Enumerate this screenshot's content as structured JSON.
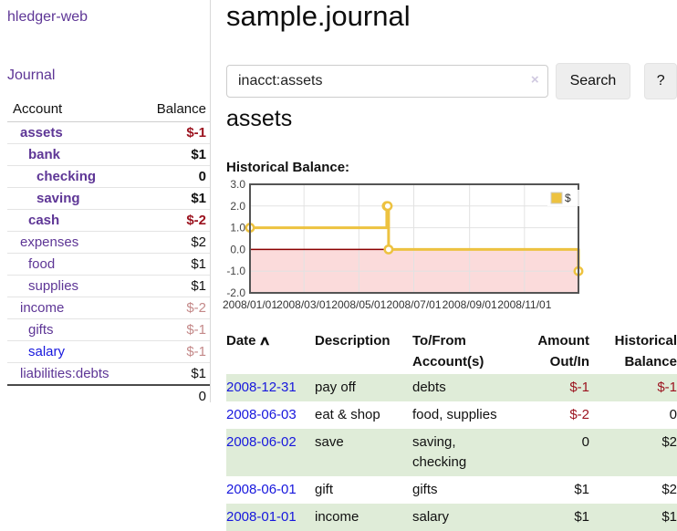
{
  "app": {
    "title": "hledger-web"
  },
  "colors": {
    "accent_purple": "#5e3696",
    "link_blue": "#1717dd",
    "negative_strong": "#9b121e",
    "negative_dim": "#c48989",
    "row_stripe_green": "#dfecd8",
    "chart_series": "#edc240",
    "chart_negative_fill": "#fbdbdb",
    "chart_zero_line": "#8b0000",
    "chart_border": "#545454",
    "chart_grid": "#e2e2e2",
    "button_bg": "#eeeeee"
  },
  "sidebar": {
    "journal_link": "Journal",
    "accounts": {
      "headers": {
        "account": "Account",
        "balance": "Balance"
      },
      "rows": [
        {
          "name": "assets",
          "depth": 0,
          "bold": true,
          "link": "purple",
          "balance": "$-1",
          "balance_class": "bal-neg-strong"
        },
        {
          "name": "bank",
          "depth": 1,
          "bold": true,
          "link": "purple",
          "balance": "$1",
          "balance_class": "bal-strong"
        },
        {
          "name": "checking",
          "depth": 2,
          "bold": true,
          "link": "purple",
          "balance": "0",
          "balance_class": "bal-strong"
        },
        {
          "name": "saving",
          "depth": 2,
          "bold": true,
          "link": "purple",
          "balance": "$1",
          "balance_class": "bal-strong"
        },
        {
          "name": "cash",
          "depth": 1,
          "bold": true,
          "link": "purple",
          "balance": "$-2",
          "balance_class": "bal-neg-strong"
        },
        {
          "name": "expenses",
          "depth": 0,
          "bold": false,
          "link": "purple",
          "balance": "$2",
          "balance_class": "bal-plain"
        },
        {
          "name": "food",
          "depth": 1,
          "bold": false,
          "link": "purple",
          "balance": "$1",
          "balance_class": "bal-plain"
        },
        {
          "name": "supplies",
          "depth": 1,
          "bold": false,
          "link": "purple",
          "balance": "$1",
          "balance_class": "bal-plain"
        },
        {
          "name": "income",
          "depth": 0,
          "bold": false,
          "link": "purple",
          "balance": "$-2",
          "balance_class": "bal-neg-dim"
        },
        {
          "name": "gifts",
          "depth": 1,
          "bold": false,
          "link": "purple",
          "balance": "$-1",
          "balance_class": "bal-neg-dim"
        },
        {
          "name": "salary",
          "depth": 1,
          "bold": false,
          "link": "blue",
          "balance": "$-1",
          "balance_class": "bal-neg-dim"
        },
        {
          "name": "liabilities:debts",
          "depth": 0,
          "bold": false,
          "link": "purple",
          "balance": "$1",
          "balance_class": "bal-plain"
        }
      ],
      "total": "0"
    }
  },
  "main": {
    "title": "sample.journal",
    "search": {
      "value": "inacct:assets",
      "clear_icon": "×",
      "button_label": "Search",
      "help_label": "?"
    },
    "account_heading": "assets",
    "chart_title": "Historical Balance:",
    "chart": {
      "type": "line",
      "legend": "$",
      "x_range": [
        "2008-01-01",
        "2008-12-31"
      ],
      "ylim": [
        -2,
        3
      ],
      "y_ticks": [
        3,
        2,
        1,
        0,
        -1,
        -2
      ],
      "y_tick_labels": [
        "3.0",
        "2.0",
        "1.0",
        "0.0",
        "-1.0",
        "-2.0"
      ],
      "x_ticks": [
        "2008-01-01",
        "2008-03-01",
        "2008-05-01",
        "2008-07-01",
        "2008-09-01",
        "2008-11-01"
      ],
      "x_tick_labels": [
        "2008/01/01",
        "2008/03/01",
        "2008/05/01",
        "2008/07/01",
        "2008/09/01",
        "2008/11/01"
      ],
      "points": [
        {
          "date": "2008-01-01",
          "balance": 1
        },
        {
          "date": "2008-06-01",
          "balance": 2
        },
        {
          "date": "2008-06-02",
          "balance": 2
        },
        {
          "date": "2008-06-03",
          "balance": 0
        },
        {
          "date": "2008-12-31",
          "balance": -1
        }
      ]
    },
    "register": {
      "headers": {
        "date": "Date",
        "sort_icon": "∧",
        "description": "Description",
        "accounts": "To/From Account(s)",
        "amount": "Amount Out/In",
        "balance": "Historical Balance"
      },
      "rows": [
        {
          "date": "2008-12-31",
          "description": "pay off",
          "accounts": "debts",
          "amount": "$-1",
          "balance": "$-1",
          "amount_neg": true,
          "balance_neg": true,
          "stripe": true
        },
        {
          "date": "2008-06-03",
          "description": "eat & shop",
          "accounts": "food, supplies",
          "amount": "$-2",
          "balance": "0",
          "amount_neg": true,
          "balance_neg": false,
          "stripe": false
        },
        {
          "date": "2008-06-02",
          "description": "save",
          "accounts": "saving, checking",
          "amount": "0",
          "balance": "$2",
          "amount_neg": false,
          "balance_neg": false,
          "stripe": true
        },
        {
          "date": "2008-06-01",
          "description": "gift",
          "accounts": "gifts",
          "amount": "$1",
          "balance": "$2",
          "amount_neg": false,
          "balance_neg": false,
          "stripe": false
        },
        {
          "date": "2008-01-01",
          "description": "income",
          "accounts": "salary",
          "amount": "$1",
          "balance": "$1",
          "amount_neg": false,
          "balance_neg": false,
          "stripe": true
        }
      ]
    }
  }
}
